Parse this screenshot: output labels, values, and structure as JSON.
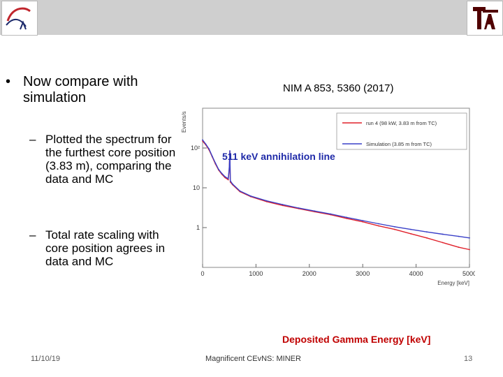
{
  "slide": {
    "bullet": "Now compare with simulation",
    "bullet_glyph": "•",
    "sub_glyph": "–",
    "sub_bullets": [
      "Plotted the spectrum for the furthest core position (3.83 m), comparing the data and MC",
      "Total rate scaling with core position agrees in data and MC"
    ],
    "reference": "NIM A 853, 5360 (2017)",
    "annotation": "511 keV annihilation line",
    "x_caption": "Deposited Gamma Energy [keV]"
  },
  "footer": {
    "date": "11/10/19",
    "title": "Magnificent CEvNS: MINER",
    "page": "13"
  },
  "chart_data": {
    "type": "line",
    "ylabel": "Events/s",
    "xlabel": "Energy [keV]",
    "xlim": [
      0,
      5000
    ],
    "ylim_log": [
      0.1,
      1000
    ],
    "log_y": true,
    "x_ticks": [
      "0",
      "1000",
      "2000",
      "3000",
      "4000",
      "5000"
    ],
    "y_ticks": [
      "1",
      "10",
      "10²"
    ],
    "legend_position": "top-right",
    "series": [
      {
        "name": "run 4 (98 kW, 3.83 m from TC)",
        "color": "#e0202a",
        "x": [
          0,
          60,
          120,
          180,
          240,
          300,
          360,
          420,
          480,
          500,
          510,
          520,
          560,
          700,
          900,
          1200,
          1500,
          1800,
          2100,
          2400,
          2700,
          3000,
          3300,
          3600,
          3900,
          4200,
          4500,
          4800,
          5000
        ],
        "y": [
          150,
          120,
          90,
          60,
          40,
          28,
          22,
          18,
          16,
          30,
          80,
          14,
          12,
          8,
          6,
          4.5,
          3.6,
          3.0,
          2.5,
          2.1,
          1.7,
          1.4,
          1.1,
          0.9,
          0.7,
          0.55,
          0.42,
          0.32,
          0.28
        ]
      },
      {
        "name": "Simulation (3.85 m from TC)",
        "color": "#3a40c8",
        "x": [
          0,
          60,
          120,
          180,
          240,
          300,
          360,
          420,
          480,
          500,
          510,
          520,
          560,
          700,
          900,
          1200,
          1500,
          1800,
          2100,
          2400,
          2700,
          3000,
          3300,
          3600,
          3900,
          4200,
          4500,
          4800,
          5000
        ],
        "y": [
          160,
          125,
          95,
          62,
          42,
          29,
          23,
          19,
          17,
          32,
          85,
          15,
          12.5,
          8.3,
          6.2,
          4.7,
          3.8,
          3.1,
          2.6,
          2.2,
          1.8,
          1.5,
          1.25,
          1.05,
          0.9,
          0.78,
          0.68,
          0.6,
          0.55
        ]
      }
    ]
  }
}
